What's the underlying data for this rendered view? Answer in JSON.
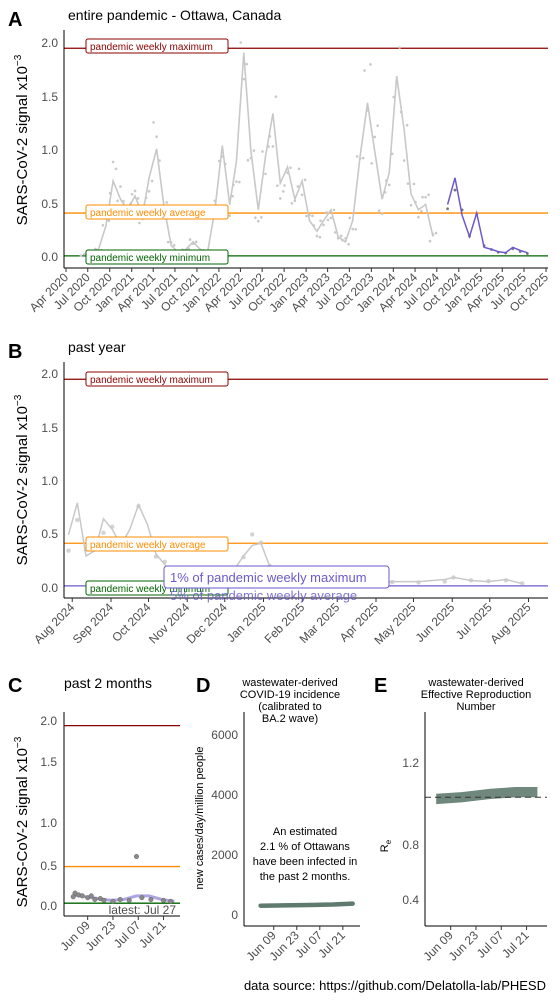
{
  "colors": {
    "maximum": "#8b0000",
    "average": "#ff8c00",
    "minimum": "#006400",
    "raw_grey": "#c8c8c8",
    "recent_purple": "#6a5acd",
    "model_green": "#5f7a6e",
    "axis": "#000000",
    "tick_text": "#4d4d4d"
  },
  "reference": {
    "max_label": "pandemic weekly maximum",
    "avg_label": "pandemic weekly average",
    "min_label": "pandemic weekly minimum",
    "max_value": 1.96,
    "avg_value": 0.42,
    "min_value": 0.02,
    "pct_max_label": "1% of pandemic weekly maximum",
    "pct_avg_label": "5% of pandemic weekly average"
  },
  "panel_a": {
    "letter": "A",
    "title": "entire pandemic - Ottawa, Canada",
    "ylabel": "SARS-CoV-2 signal x10",
    "ylabel_exp": "−3",
    "ytick_labels": [
      "0.0",
      "0.5",
      "1.0",
      "1.5",
      "2.0"
    ]
  },
  "panel_b": {
    "letter": "B",
    "title": "past year",
    "ylabel": "SARS-CoV-2 signal x10",
    "ylabel_exp": "−3",
    "ytick_labels": [
      "0.0",
      "0.5",
      "1.0",
      "1.5",
      "2.0"
    ]
  },
  "panel_c": {
    "letter": "C",
    "title": "past 2 months",
    "ylabel": "SARS-CoV-2 signal x10",
    "ylabel_exp": "−3",
    "ytick_labels": [
      "0.0",
      "0.5",
      "1.0",
      "1.5",
      "2.0"
    ],
    "latest_label": "latest: Jul 27"
  },
  "panel_d": {
    "letter": "D",
    "title_lines": [
      "wastewater-derived",
      "COVID-19 incidence",
      "(calibrated to",
      "BA.2 wave)"
    ],
    "ylabel": "new cases/day/million people",
    "ytick_labels": [
      "0",
      "2000",
      "4000",
      "6000"
    ],
    "annotation_lines": [
      "An estimated",
      "2.1 % of Ottawans",
      "have been infected in",
      "the past 2 months."
    ]
  },
  "panel_e": {
    "letter": "E",
    "title_lines": [
      "wastewater-derived",
      "Effective Reproduction",
      "Number"
    ],
    "ylabel": "R",
    "ylabel_sub": "e",
    "ytick_labels": [
      "0.4",
      "0.8",
      "1.2"
    ]
  },
  "footer": {
    "source": "data source: https://github.com/Delatolla-lab/PHESD"
  },
  "chart_data": [
    {
      "panel": "A",
      "type": "line",
      "title": "entire pandemic - Ottawa, Canada",
      "ylabel": "SARS-CoV-2 signal x10^-3",
      "xlim": [
        "2020-04-01",
        "2025-10-01"
      ],
      "ylim": [
        0,
        2.0
      ],
      "x_ticks": [
        "Apr 2020",
        "Jul 2020",
        "Oct 2020",
        "Jan 2021",
        "Apr 2021",
        "Jul 2021",
        "Oct 2021",
        "Jan 2022",
        "Apr 2022",
        "Jul 2022",
        "Oct 2022",
        "Jan 2023",
        "Apr 2023",
        "Jul 2023",
        "Oct 2023",
        "Jan 2024",
        "Apr 2024",
        "Jul 2024",
        "Oct 2024",
        "Jan 2025",
        "Apr 2025",
        "Jul 2025",
        "Oct 2025"
      ],
      "reference_lines": [
        {
          "name": "pandemic weekly maximum",
          "value": 1.96
        },
        {
          "name": "pandemic weekly average",
          "value": 0.42
        },
        {
          "name": "pandemic weekly minimum",
          "value": 0.02
        }
      ],
      "series": [
        {
          "values_by_month": [
            [
              "2020-06",
              0.03
            ],
            [
              "2020-07",
              0.06
            ],
            [
              "2020-08",
              0.08
            ],
            [
              "2020-09",
              0.3
            ],
            [
              "2020-10",
              0.72
            ],
            [
              "2020-11",
              0.55
            ],
            [
              "2020-12",
              0.45
            ],
            [
              "2021-01",
              0.58
            ],
            [
              "2021-02",
              0.4
            ],
            [
              "2021-03",
              0.75
            ],
            [
              "2021-04",
              1.02
            ],
            [
              "2021-05",
              0.5
            ],
            [
              "2021-06",
              0.12
            ],
            [
              "2021-07",
              0.05
            ],
            [
              "2021-08",
              0.08
            ],
            [
              "2021-09",
              0.15
            ],
            [
              "2021-10",
              0.08
            ],
            [
              "2021-11",
              0.06
            ],
            [
              "2021-12",
              0.45
            ],
            [
              "2022-01",
              1.05
            ],
            [
              "2022-02",
              0.5
            ],
            [
              "2022-03",
              0.9
            ],
            [
              "2022-04",
              1.92
            ],
            [
              "2022-05",
              1.0
            ],
            [
              "2022-06",
              0.45
            ],
            [
              "2022-07",
              0.95
            ],
            [
              "2022-08",
              1.35
            ],
            [
              "2022-09",
              0.7
            ],
            [
              "2022-10",
              0.85
            ],
            [
              "2022-11",
              0.55
            ],
            [
              "2022-12",
              0.72
            ],
            [
              "2023-01",
              0.35
            ],
            [
              "2023-02",
              0.25
            ],
            [
              "2023-03",
              0.35
            ],
            [
              "2023-04",
              0.45
            ],
            [
              "2023-05",
              0.2
            ],
            [
              "2023-06",
              0.15
            ],
            [
              "2023-07",
              0.35
            ],
            [
              "2023-08",
              0.95
            ],
            [
              "2023-09",
              1.45
            ],
            [
              "2023-10",
              1.0
            ],
            [
              "2023-11",
              0.55
            ],
            [
              "2023-12",
              0.8
            ],
            [
              "2024-01",
              1.7
            ],
            [
              "2024-02",
              1.2
            ],
            [
              "2024-03",
              0.6
            ],
            [
              "2024-04",
              0.45
            ],
            [
              "2024-05",
              0.5
            ],
            [
              "2024-06",
              0.2
            ]
          ]
        },
        {
          "name": "past year (highlighted)",
          "values_by_month": [
            [
              "2024-08",
              0.5
            ],
            [
              "2024-09",
              0.75
            ],
            [
              "2024-10",
              0.4
            ],
            [
              "2024-11",
              0.2
            ],
            [
              "2024-12",
              0.42
            ],
            [
              "2025-01",
              0.1
            ],
            [
              "2025-02",
              0.08
            ],
            [
              "2025-03",
              0.06
            ],
            [
              "2025-04",
              0.05
            ],
            [
              "2025-05",
              0.1
            ],
            [
              "2025-06",
              0.07
            ],
            [
              "2025-07",
              0.05
            ]
          ]
        }
      ]
    },
    {
      "panel": "B",
      "type": "line",
      "title": "past year",
      "ylabel": "SARS-CoV-2 signal x10^-3",
      "xlim": [
        "2024-07-27",
        "2025-08-15"
      ],
      "ylim": [
        0,
        2.0
      ],
      "x_ticks": [
        "Aug 2024",
        "Sep 2024",
        "Oct 2024",
        "Nov 2024",
        "Dec 2024",
        "Jan 2025",
        "Feb 2025",
        "Mar 2025",
        "Apr 2025",
        "May 2025",
        "Jun 2025",
        "Jul 2025",
        "Aug 2025"
      ],
      "reference_lines": [
        {
          "name": "pandemic weekly maximum",
          "value": 1.96
        },
        {
          "name": "pandemic weekly average",
          "value": 0.42
        },
        {
          "name": "pandemic weekly minimum",
          "value": 0.02
        },
        {
          "name": "1% of pandemic weekly maximum",
          "value": 0.02
        },
        {
          "name": "5% of pandemic weekly average",
          "value": 0.02
        }
      ],
      "series": [
        {
          "points": [
            [
              "2024-07-29",
              0.5
            ],
            [
              "2024-08-05",
              0.8
            ],
            [
              "2024-08-12",
              0.3
            ],
            [
              "2024-08-19",
              0.35
            ],
            [
              "2024-08-26",
              0.65
            ],
            [
              "2024-09-02",
              0.55
            ],
            [
              "2024-09-09",
              0.4
            ],
            [
              "2024-09-16",
              0.55
            ],
            [
              "2024-09-23",
              0.78
            ],
            [
              "2024-09-30",
              0.6
            ],
            [
              "2024-10-07",
              0.32
            ],
            [
              "2024-10-14",
              0.22
            ],
            [
              "2024-10-21",
              0.12
            ],
            [
              "2024-10-28",
              0.1
            ],
            [
              "2024-11-04",
              0.08
            ],
            [
              "2024-11-11",
              0.15
            ],
            [
              "2024-11-18",
              0.1
            ],
            [
              "2024-11-25",
              0.12
            ],
            [
              "2024-12-02",
              0.15
            ],
            [
              "2024-12-09",
              0.18
            ],
            [
              "2024-12-16",
              0.3
            ],
            [
              "2024-12-23",
              0.4
            ],
            [
              "2024-12-30",
              0.42
            ],
            [
              "2025-01-06",
              0.2
            ],
            [
              "2025-01-13",
              0.12
            ],
            [
              "2025-01-27",
              0.08
            ],
            [
              "2025-02-10",
              0.06
            ],
            [
              "2025-03-03",
              0.06
            ],
            [
              "2025-03-24",
              0.05
            ],
            [
              "2025-04-14",
              0.06
            ],
            [
              "2025-05-05",
              0.06
            ],
            [
              "2025-05-26",
              0.08
            ],
            [
              "2025-06-02",
              0.1
            ],
            [
              "2025-06-16",
              0.07
            ],
            [
              "2025-06-30",
              0.06
            ],
            [
              "2025-07-14",
              0.08
            ],
            [
              "2025-07-27",
              0.04
            ]
          ]
        }
      ]
    },
    {
      "panel": "C",
      "type": "line",
      "title": "past 2 months",
      "ylabel": "SARS-CoV-2 signal x10^-3",
      "xlim": [
        "2025-05-28",
        "2025-07-29"
      ],
      "ylim": [
        0,
        2.0
      ],
      "x_ticks": [
        "Jun 09",
        "Jun 23",
        "Jul 07",
        "Jul 21"
      ],
      "reference_lines": [
        {
          "name": "pandemic weekly maximum",
          "value": 1.96
        },
        {
          "name": "pandemic weekly average",
          "value": 0.42
        },
        {
          "name": "pandemic weekly minimum",
          "value": 0.02
        }
      ],
      "points": [
        [
          "2025-06-01",
          0.09
        ],
        [
          "2025-06-02",
          0.13
        ],
        [
          "2025-06-04",
          0.11
        ],
        [
          "2025-06-06",
          0.1
        ],
        [
          "2025-06-09",
          0.08
        ],
        [
          "2025-06-11",
          0.1
        ],
        [
          "2025-06-13",
          0.06
        ],
        [
          "2025-06-16",
          0.07
        ],
        [
          "2025-06-18",
          0.05
        ],
        [
          "2025-06-23",
          0.04
        ],
        [
          "2025-06-27",
          0.06
        ],
        [
          "2025-07-02",
          0.05
        ],
        [
          "2025-07-06",
          0.53
        ],
        [
          "2025-07-09",
          0.08
        ],
        [
          "2025-07-14",
          0.06
        ],
        [
          "2025-07-21",
          0.05
        ],
        [
          "2025-07-25",
          0.04
        ]
      ],
      "smoothed": [
        [
          "2025-06-01",
          0.11
        ],
        [
          "2025-06-08",
          0.09
        ],
        [
          "2025-06-15",
          0.07
        ],
        [
          "2025-06-22",
          0.05
        ],
        [
          "2025-06-29",
          0.06
        ],
        [
          "2025-07-06",
          0.1
        ],
        [
          "2025-07-13",
          0.1
        ],
        [
          "2025-07-20",
          0.06
        ],
        [
          "2025-07-27",
          0.04
        ]
      ],
      "annotation": "latest: Jul 27"
    },
    {
      "panel": "D",
      "type": "line",
      "title": "wastewater-derived COVID-19 incidence (calibrated to BA.2 wave)",
      "ylabel": "new cases/day/million people",
      "xlim": [
        "2025-05-28",
        "2025-07-29"
      ],
      "ylim": [
        0,
        6000
      ],
      "x_ticks": [
        "Jun 09",
        "Jun 23",
        "Jul 07",
        "Jul 21"
      ],
      "series": [
        {
          "points": [
            [
              "2025-06-01",
              310
            ],
            [
              "2025-06-15",
              320
            ],
            [
              "2025-07-01",
              335
            ],
            [
              "2025-07-15",
              350
            ],
            [
              "2025-07-27",
              380
            ]
          ]
        }
      ],
      "annotation": "An estimated 2.1 % of Ottawans have been infected in the past 2 months."
    },
    {
      "panel": "E",
      "type": "line",
      "title": "wastewater-derived Effective Reproduction Number",
      "ylabel": "Re",
      "xlim": [
        "2025-05-28",
        "2025-07-29"
      ],
      "ylim": [
        0.2,
        1.5
      ],
      "x_ticks": [
        "Jun 09",
        "Jun 23",
        "Jul 07",
        "Jul 21"
      ],
      "reference_line": 1.0,
      "series": [
        {
          "points": [
            [
              "2025-06-01",
              0.99
            ],
            [
              "2025-06-15",
              1.0
            ],
            [
              "2025-07-01",
              1.02
            ],
            [
              "2025-07-15",
              1.03
            ],
            [
              "2025-07-27",
              1.03
            ]
          ]
        }
      ]
    }
  ]
}
